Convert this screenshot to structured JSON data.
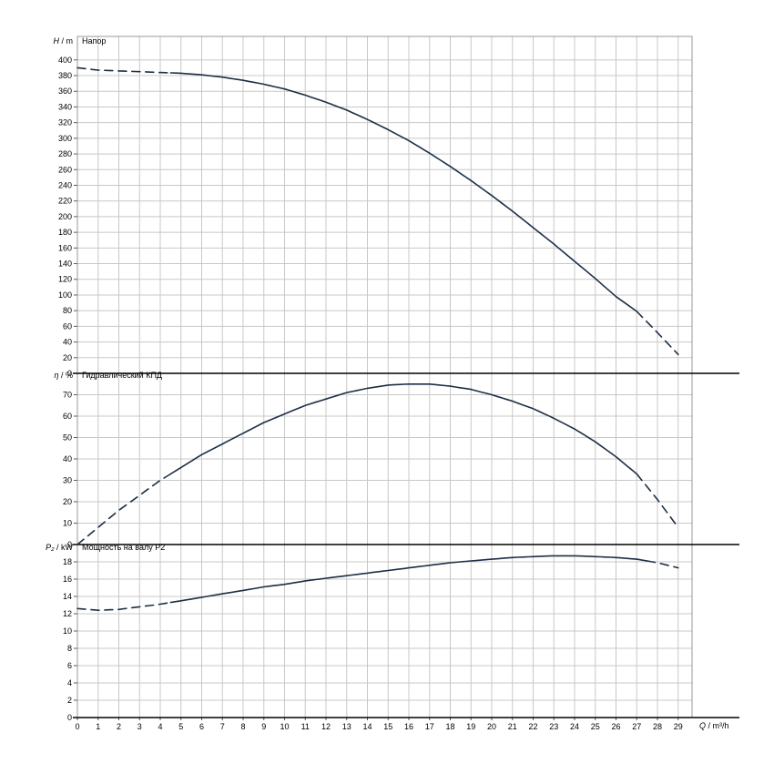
{
  "colors": {
    "curve": "#1c2f45",
    "grid": "#c8c8c8",
    "frame": "#9a9a9a",
    "axis_line": "#000000",
    "tick": "#555555",
    "text": "#000000",
    "background": "#ffffff"
  },
  "xaxis": {
    "label_var": "Q",
    "label_unit": " / m³/h",
    "min": 0,
    "max": 29,
    "tick_step": 1
  },
  "chart_data": [
    {
      "type": "line",
      "name": "head",
      "title": "Напор",
      "ylabel_var": "H",
      "ylabel_unit": " / m",
      "ylim": [
        0,
        430
      ],
      "ytick_max": 400,
      "ytick_step": 20,
      "x": [
        0,
        1,
        2,
        3,
        4,
        5,
        6,
        7,
        8,
        9,
        10,
        11,
        12,
        13,
        14,
        15,
        16,
        17,
        18,
        19,
        20,
        21,
        22,
        23,
        24,
        25,
        26,
        27,
        28,
        29
      ],
      "values": [
        390,
        387,
        386,
        385,
        384,
        383,
        381,
        378,
        374,
        369,
        363,
        355,
        346,
        336,
        324,
        311,
        297,
        281,
        264,
        246,
        227,
        207,
        186,
        165,
        143,
        121,
        98,
        79,
        52,
        24
      ],
      "solid_from": 4.5,
      "solid_to": 27,
      "legend": "none",
      "grid": "on"
    },
    {
      "type": "line",
      "name": "efficiency",
      "title": "Гидравлический КПД",
      "ylabel_var": "η",
      "ylabel_unit": " / %",
      "ylim": [
        0,
        80
      ],
      "ytick_max": 70,
      "ytick_step": 10,
      "x": [
        0,
        1,
        2,
        3,
        4,
        5,
        6,
        7,
        8,
        9,
        10,
        11,
        12,
        13,
        14,
        15,
        16,
        17,
        18,
        19,
        20,
        21,
        22,
        23,
        24,
        25,
        26,
        27,
        28,
        29
      ],
      "values": [
        0,
        8,
        16,
        23,
        30,
        36,
        42,
        47,
        52,
        57,
        61,
        65,
        68,
        71,
        73,
        74.5,
        75,
        75,
        74,
        72.5,
        70,
        67,
        63.5,
        59,
        54,
        48,
        41,
        33,
        21,
        8
      ],
      "solid_from": 4.5,
      "solid_to": 27,
      "legend": "none",
      "grid": "on"
    },
    {
      "type": "line",
      "name": "power",
      "title": "Мощность на валу P2",
      "ylabel_var": "P₂",
      "ylabel_unit": " / kW",
      "ylim": [
        0,
        20
      ],
      "ytick_max": 18,
      "ytick_step": 2,
      "x": [
        0,
        1,
        2,
        3,
        4,
        5,
        6,
        7,
        8,
        9,
        10,
        11,
        12,
        13,
        14,
        15,
        16,
        17,
        18,
        19,
        20,
        21,
        22,
        23,
        24,
        25,
        26,
        27,
        28,
        29
      ],
      "values": [
        12.6,
        12.4,
        12.5,
        12.8,
        13.1,
        13.5,
        13.9,
        14.3,
        14.7,
        15.1,
        15.4,
        15.8,
        16.1,
        16.4,
        16.7,
        17.0,
        17.3,
        17.6,
        17.9,
        18.1,
        18.3,
        18.5,
        18.6,
        18.7,
        18.7,
        18.6,
        18.5,
        18.3,
        17.9,
        17.3
      ],
      "solid_from": 4.5,
      "solid_to": 27.5,
      "legend": "none",
      "grid": "on"
    }
  ]
}
